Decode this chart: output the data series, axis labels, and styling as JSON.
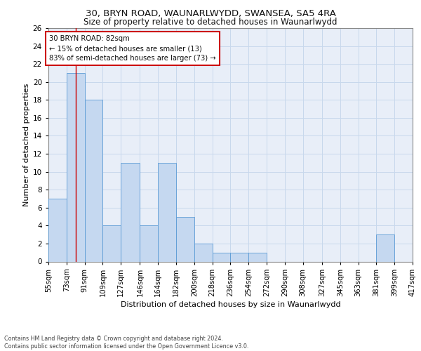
{
  "title1": "30, BRYN ROAD, WAUNARLWYDD, SWANSEA, SA5 4RA",
  "title2": "Size of property relative to detached houses in Waunarlwydd",
  "xlabel": "Distribution of detached houses by size in Waunarlwydd",
  "ylabel": "Number of detached properties",
  "bin_labels": [
    "55sqm",
    "73sqm",
    "91sqm",
    "109sqm",
    "127sqm",
    "146sqm",
    "164sqm",
    "182sqm",
    "200sqm",
    "218sqm",
    "236sqm",
    "254sqm",
    "272sqm",
    "290sqm",
    "308sqm",
    "327sqm",
    "345sqm",
    "363sqm",
    "381sqm",
    "399sqm",
    "417sqm"
  ],
  "bin_edges": [
    55,
    73,
    91,
    109,
    127,
    146,
    164,
    182,
    200,
    218,
    236,
    254,
    272,
    290,
    308,
    327,
    345,
    363,
    381,
    399,
    417
  ],
  "counts": [
    7,
    21,
    18,
    4,
    11,
    4,
    11,
    5,
    2,
    1,
    1,
    1,
    0,
    0,
    0,
    0,
    0,
    0,
    3,
    0,
    0
  ],
  "bar_color": "#c5d8f0",
  "bar_edge_color": "#5b9bd5",
  "grid_color": "#c8d8ec",
  "annotation_line1": "30 BRYN ROAD: 82sqm",
  "annotation_line2": "← 15% of detached houses are smaller (13)",
  "annotation_line3": "83% of semi-detached houses are larger (73) →",
  "annotation_box_color": "#ffffff",
  "annotation_box_edge_color": "#cc0000",
  "red_line_x": 82,
  "ylim": [
    0,
    26
  ],
  "yticks": [
    0,
    2,
    4,
    6,
    8,
    10,
    12,
    14,
    16,
    18,
    20,
    22,
    24,
    26
  ],
  "footer_text": "Contains HM Land Registry data © Crown copyright and database right 2024.\nContains public sector information licensed under the Open Government Licence v3.0.",
  "background_color": "#e8eef8"
}
